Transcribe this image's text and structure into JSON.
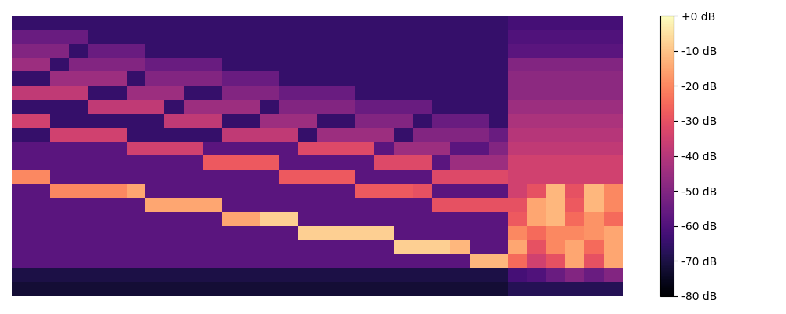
{
  "chart_data": {
    "type": "heatmap",
    "color": "magma",
    "tick_labels": false,
    "color_range": [
      -80,
      0
    ],
    "color_ticks": [
      {
        "value": 0,
        "label": "+0 dB"
      },
      {
        "value": -10,
        "label": "-10 dB"
      },
      {
        "value": -20,
        "label": "-20 dB"
      },
      {
        "value": -30,
        "label": "-30 dB"
      },
      {
        "value": -40,
        "label": "-40 dB"
      },
      {
        "value": -50,
        "label": "-50 dB"
      },
      {
        "value": -60,
        "label": "-60 dB"
      },
      {
        "value": -70,
        "label": "-70 dB"
      },
      {
        "value": -80,
        "label": "-80 dB"
      }
    ],
    "cells": [
      [
        -65,
        -65,
        -65,
        -65,
        -65,
        -65,
        -65,
        -65,
        -65,
        -65,
        -65,
        -65,
        -65,
        -65,
        -65,
        -65,
        -65,
        -65,
        -65,
        -65,
        -65,
        -65,
        -65,
        -65,
        -65,
        -65,
        -62,
        -62,
        -62,
        -62,
        -62,
        -62
      ],
      [
        -55,
        -55,
        -55,
        -55,
        -65,
        -65,
        -65,
        -65,
        -65,
        -65,
        -65,
        -65,
        -65,
        -65,
        -65,
        -65,
        -65,
        -65,
        -65,
        -65,
        -65,
        -65,
        -65,
        -65,
        -65,
        -65,
        -60,
        -60,
        -60,
        -60,
        -60,
        -60
      ],
      [
        -50,
        -50,
        -50,
        -65,
        -55,
        -55,
        -55,
        -65,
        -65,
        -65,
        -65,
        -65,
        -65,
        -65,
        -65,
        -65,
        -65,
        -65,
        -65,
        -65,
        -65,
        -65,
        -65,
        -65,
        -65,
        -65,
        -58,
        -58,
        -58,
        -58,
        -58,
        -58
      ],
      [
        -45,
        -45,
        -65,
        -50,
        -50,
        -50,
        -50,
        -55,
        -55,
        -55,
        -55,
        -65,
        -65,
        -65,
        -65,
        -65,
        -65,
        -65,
        -65,
        -65,
        -65,
        -65,
        -65,
        -65,
        -65,
        -65,
        -50,
        -50,
        -50,
        -50,
        -50,
        -50
      ],
      [
        -65,
        -65,
        -45,
        -45,
        -45,
        -45,
        -65,
        -50,
        -50,
        -50,
        -50,
        -55,
        -55,
        -55,
        -65,
        -65,
        -65,
        -65,
        -65,
        -65,
        -65,
        -65,
        -65,
        -65,
        -65,
        -65,
        -48,
        -48,
        -48,
        -48,
        -48,
        -48
      ],
      [
        -38,
        -38,
        -38,
        -38,
        -65,
        -65,
        -45,
        -45,
        -45,
        -65,
        -65,
        -50,
        -50,
        -50,
        -55,
        -55,
        -55,
        -55,
        -65,
        -65,
        -65,
        -65,
        -65,
        -65,
        -65,
        -65,
        -48,
        -48,
        -48,
        -48,
        -48,
        -48
      ],
      [
        -65,
        -65,
        -65,
        -65,
        -38,
        -38,
        -38,
        -38,
        -65,
        -45,
        -45,
        -45,
        -45,
        -65,
        -50,
        -50,
        -50,
        -50,
        -55,
        -55,
        -55,
        -55,
        -65,
        -65,
        -65,
        -65,
        -45,
        -45,
        -45,
        -45,
        -45,
        -45
      ],
      [
        -35,
        -35,
        -65,
        -65,
        -65,
        -65,
        -65,
        -65,
        -38,
        -38,
        -38,
        -65,
        -65,
        -45,
        -45,
        -45,
        -65,
        -65,
        -50,
        -50,
        -50,
        -65,
        -55,
        -55,
        -55,
        -65,
        -42,
        -42,
        -42,
        -42,
        -42,
        -42
      ],
      [
        -65,
        -65,
        -35,
        -35,
        -35,
        -35,
        -65,
        -65,
        -65,
        -65,
        -65,
        -38,
        -38,
        -38,
        -38,
        -65,
        -45,
        -45,
        -45,
        -45,
        -65,
        -50,
        -50,
        -50,
        -50,
        -55,
        -40,
        -40,
        -40,
        -40,
        -40,
        -40
      ],
      [
        -58,
        -58,
        -58,
        -58,
        -58,
        -58,
        -35,
        -35,
        -35,
        -35,
        -58,
        -58,
        -58,
        -58,
        -58,
        -32,
        -32,
        -32,
        -32,
        -58,
        -45,
        -45,
        -45,
        -58,
        -58,
        -50,
        -38,
        -38,
        -38,
        -38,
        -38,
        -38
      ],
      [
        -58,
        -58,
        -58,
        -58,
        -58,
        -58,
        -58,
        -58,
        -58,
        -58,
        -28,
        -28,
        -28,
        -28,
        -58,
        -58,
        -58,
        -58,
        -58,
        -32,
        -32,
        -32,
        -58,
        -45,
        -45,
        -45,
        -35,
        -35,
        -35,
        -35,
        -35,
        -35
      ],
      [
        -20,
        -20,
        -58,
        -58,
        -58,
        -58,
        -58,
        -58,
        -58,
        -58,
        -58,
        -58,
        -58,
        -58,
        -28,
        -28,
        -28,
        -28,
        -58,
        -58,
        -58,
        -58,
        -32,
        -32,
        -32,
        -32,
        -35,
        -35,
        -35,
        -35,
        -35,
        -35
      ],
      [
        -58,
        -58,
        -20,
        -20,
        -20,
        -20,
        -15,
        -58,
        -58,
        -58,
        -58,
        -58,
        -58,
        -58,
        -58,
        -58,
        -58,
        -58,
        -28,
        -28,
        -28,
        -30,
        -58,
        -58,
        -58,
        -58,
        -35,
        -30,
        -12,
        -30,
        -12,
        -20
      ],
      [
        -58,
        -58,
        -58,
        -58,
        -58,
        -58,
        -58,
        -15,
        -15,
        -15,
        -15,
        -58,
        -58,
        -58,
        -58,
        -58,
        -58,
        -58,
        -58,
        -58,
        -58,
        -58,
        -30,
        -30,
        -30,
        -30,
        -30,
        -15,
        -12,
        -28,
        -12,
        -20
      ],
      [
        -58,
        -58,
        -58,
        -58,
        -58,
        -58,
        -58,
        -58,
        -58,
        -58,
        -58,
        -15,
        -15,
        -8,
        -8,
        -58,
        -58,
        -58,
        -58,
        -58,
        -58,
        -58,
        -58,
        -58,
        -58,
        -58,
        -28,
        -15,
        -12,
        -25,
        -18,
        -25
      ],
      [
        -58,
        -58,
        -58,
        -58,
        -58,
        -58,
        -58,
        -58,
        -58,
        -58,
        -58,
        -58,
        -58,
        -58,
        -58,
        -8,
        -8,
        -8,
        -8,
        -8,
        -58,
        -58,
        -58,
        -58,
        -58,
        -58,
        -20,
        -25,
        -20,
        -20,
        -18,
        -15
      ],
      [
        -58,
        -58,
        -58,
        -58,
        -58,
        -58,
        -58,
        -58,
        -58,
        -58,
        -58,
        -58,
        -58,
        -58,
        -58,
        -58,
        -58,
        -58,
        -58,
        -58,
        -8,
        -8,
        -8,
        -12,
        -58,
        -58,
        -15,
        -30,
        -20,
        -15,
        -25,
        -15
      ],
      [
        -58,
        -58,
        -58,
        -58,
        -58,
        -58,
        -58,
        -58,
        -58,
        -58,
        -58,
        -58,
        -58,
        -58,
        -58,
        -58,
        -58,
        -58,
        -58,
        -58,
        -58,
        -58,
        -58,
        -58,
        -12,
        -12,
        -25,
        -35,
        -30,
        -15,
        -30,
        -15
      ],
      [
        -70,
        -70,
        -70,
        -70,
        -70,
        -70,
        -70,
        -70,
        -70,
        -70,
        -70,
        -70,
        -70,
        -70,
        -70,
        -70,
        -70,
        -70,
        -70,
        -70,
        -70,
        -70,
        -70,
        -70,
        -70,
        -70,
        -62,
        -60,
        -55,
        -50,
        -55,
        -50
      ],
      [
        -72,
        -72,
        -72,
        -72,
        -72,
        -72,
        -72,
        -72,
        -72,
        -72,
        -72,
        -72,
        -72,
        -72,
        -72,
        -72,
        -72,
        -72,
        -72,
        -72,
        -72,
        -72,
        -72,
        -72,
        -72,
        -72,
        -68,
        -68,
        -68,
        -68,
        -68,
        -68
      ]
    ]
  }
}
